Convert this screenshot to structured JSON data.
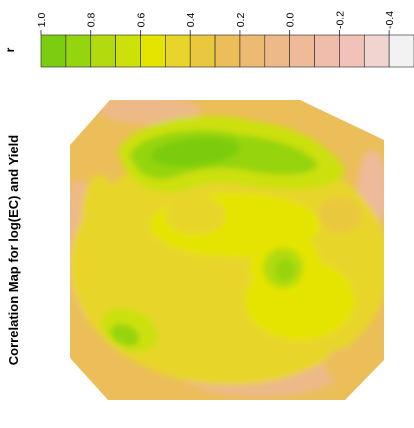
{
  "chart_data": {
    "type": "heatmap",
    "title": "Correlation Map for log(EC) and Yield",
    "legend_title": "r",
    "legend_ticks": [
      "1.0",
      "0.8",
      "0.6",
      "0.4",
      "0.2",
      "0.0",
      "-0.2",
      "-0.4"
    ],
    "legend_bins": [
      {
        "from": 1.0,
        "to": 0.9,
        "color": "#7ccc10"
      },
      {
        "from": 0.9,
        "to": 0.8,
        "color": "#96d410"
      },
      {
        "from": 0.8,
        "to": 0.7,
        "color": "#b2da0e"
      },
      {
        "from": 0.7,
        "to": 0.6,
        "color": "#cce00a"
      },
      {
        "from": 0.6,
        "to": 0.5,
        "color": "#e4e400"
      },
      {
        "from": 0.5,
        "to": 0.4,
        "color": "#e8d52c"
      },
      {
        "from": 0.4,
        "to": 0.3,
        "color": "#e9c83e"
      },
      {
        "from": 0.3,
        "to": 0.2,
        "color": "#ebbe5a"
      },
      {
        "from": 0.2,
        "to": 0.1,
        "color": "#ecba70"
      },
      {
        "from": 0.1,
        "to": 0.0,
        "color": "#edb988"
      },
      {
        "from": 0.0,
        "to": -0.1,
        "color": "#eeba9a"
      },
      {
        "from": -0.1,
        "to": -0.2,
        "color": "#efbdaa"
      },
      {
        "from": -0.2,
        "to": -0.3,
        "color": "#f0c2b8"
      },
      {
        "from": -0.3,
        "to": -0.4,
        "color": "#f1d4d0"
      },
      {
        "from": -0.4,
        "to": -0.5,
        "color": "#f2f2f2"
      }
    ],
    "colorscale_range": [
      -0.5,
      1.0
    ],
    "rotated": true,
    "regions": [
      {
        "value": 0.28,
        "desc": "field background"
      },
      {
        "value": 0.05,
        "desc": "low correlation patch"
      },
      {
        "value": 0.02,
        "desc": "low correlation patch"
      },
      {
        "value": 0.05,
        "desc": "low correlation patch"
      },
      {
        "value": -0.05,
        "desc": "low correlation patch"
      },
      {
        "value": 0.08,
        "desc": "low correlation patch"
      },
      {
        "value": 0.42,
        "desc": "moderate patch"
      },
      {
        "value": 0.62,
        "desc": "high band"
      },
      {
        "value": 0.82,
        "desc": "high core"
      },
      {
        "value": 0.93,
        "desc": "peak"
      },
      {
        "value": 0.55,
        "desc": "yellow band"
      },
      {
        "value": 0.5,
        "desc": "yellow band"
      },
      {
        "value": 0.48,
        "desc": "yellow patch"
      },
      {
        "value": 0.68,
        "desc": "green patch"
      },
      {
        "value": 0.8,
        "desc": "green patch"
      },
      {
        "value": 0.52,
        "desc": "yellow patch"
      },
      {
        "value": 0.72,
        "desc": "green patch"
      },
      {
        "value": 0.85,
        "desc": "green core"
      },
      {
        "value": 0.45,
        "desc": "patch"
      },
      {
        "value": 0.46,
        "desc": "patch"
      },
      {
        "value": 0.2,
        "desc": "patch"
      },
      {
        "value": 0.35,
        "desc": "patch"
      }
    ]
  }
}
